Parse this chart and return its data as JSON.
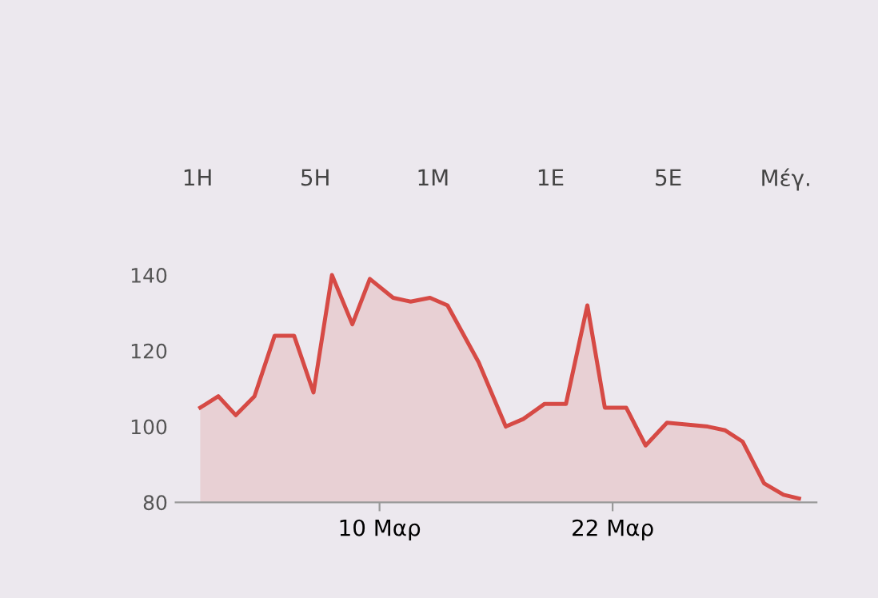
{
  "chart_data": {
    "type": "area",
    "annotations": [
      "1Η",
      "5Η",
      "1Μ",
      "1Ε",
      "5Ε",
      "Μέγ."
    ],
    "x": [
      0.77,
      1.7,
      2.6,
      3.56,
      4.6,
      5.6,
      6.6,
      7.55,
      8.6,
      9.5,
      10.7,
      11.6,
      12.6,
      13.5,
      15.1,
      16.5,
      17.4,
      18.5,
      19.6,
      20.7,
      21.6,
      22.7,
      23.7,
      24.8,
      26.9,
      27.8,
      28.7,
      29.8,
      30.8,
      31.6
    ],
    "series": [
      {
        "color": "#d64a45",
        "values": [
          105,
          108,
          103,
          108,
          124,
          124,
          109,
          140,
          127,
          139,
          134,
          133,
          134,
          132,
          117,
          100,
          102,
          106,
          106,
          132,
          105,
          105,
          95,
          101,
          100,
          99,
          96,
          85,
          82,
          81
        ]
      }
    ],
    "xlim": [
      -0.5,
      32.5
    ],
    "ylim": [
      80,
      140
    ],
    "xticks": [
      {
        "value": 10,
        "label": "10 Μαρ"
      },
      {
        "value": 22,
        "label": "22 Μαρ"
      }
    ],
    "yticks": [
      80,
      100,
      120,
      140
    ],
    "grid": false
  }
}
